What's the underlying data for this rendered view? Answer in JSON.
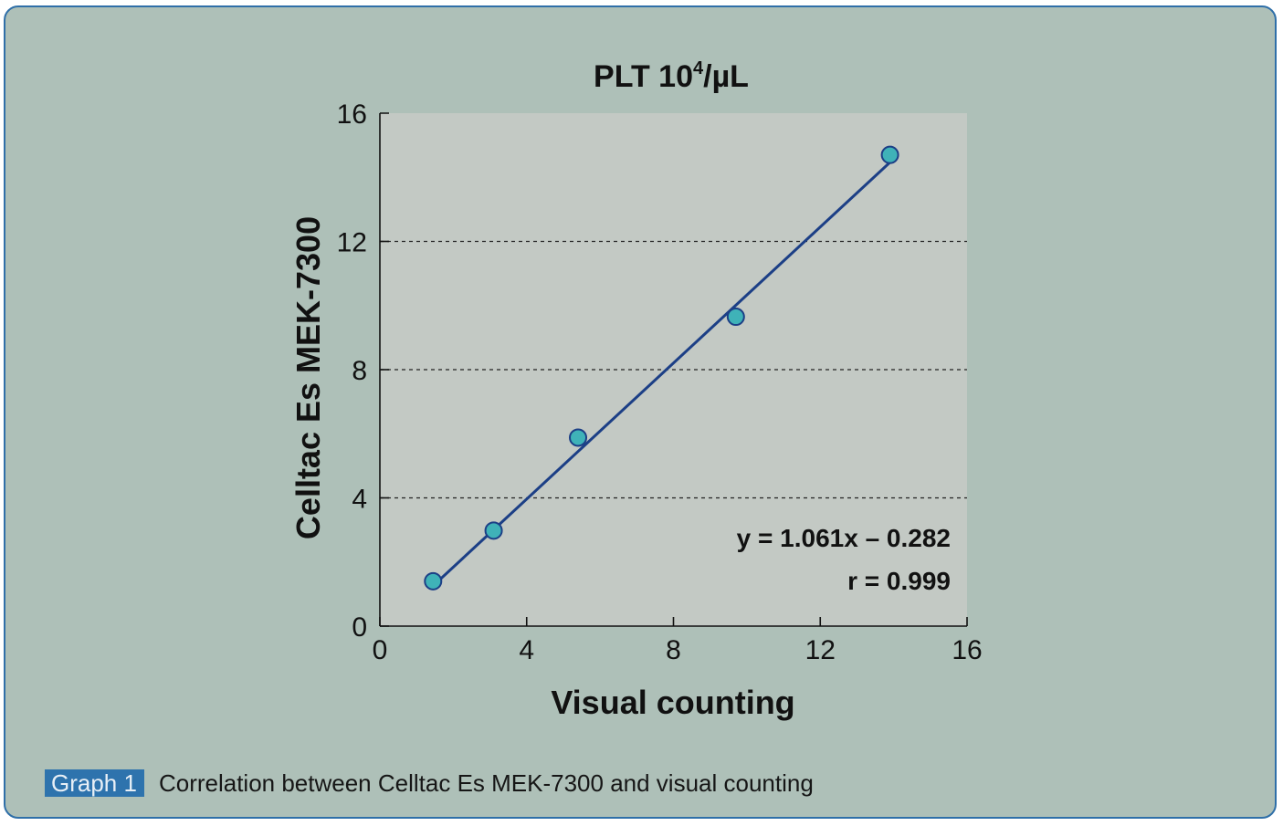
{
  "chart_data": {
    "type": "scatter",
    "title": "PLT 10",
    "title_superscript": "4",
    "title_unit": "/µL",
    "xlabel": "Visual counting",
    "ylabel": "Celltac Es MEK-7300",
    "xlim": [
      0,
      16
    ],
    "ylim": [
      0,
      16
    ],
    "x_ticks": [
      0,
      4,
      8,
      12,
      16
    ],
    "y_ticks": [
      0,
      4,
      8,
      12,
      16
    ],
    "grid": "dashed horizontal at y = 4, 8, 12",
    "series": [
      {
        "name": "PLT",
        "x": [
          1.45,
          3.1,
          5.4,
          9.7,
          13.9
        ],
        "y": [
          1.4,
          2.98,
          5.88,
          9.65,
          14.7
        ]
      }
    ],
    "regression": {
      "slope": 1.061,
      "intercept": -0.282,
      "x_range": [
        1.55,
        13.9
      ],
      "equation_label": "y = 1.061x – 0.282",
      "r_label": "r = 0.999"
    }
  },
  "caption": {
    "badge": "Graph 1",
    "text": "Correlation between Celltac Es MEK-7300 and visual counting"
  },
  "colors": {
    "background": "#aec0b8",
    "plot_area": "#c3c9c4",
    "border": "#2f6fa8",
    "line": "#1c3f86",
    "point_fill": "#3fb2b8",
    "point_stroke": "#1c3f86",
    "badge": "#2e73ad"
  }
}
